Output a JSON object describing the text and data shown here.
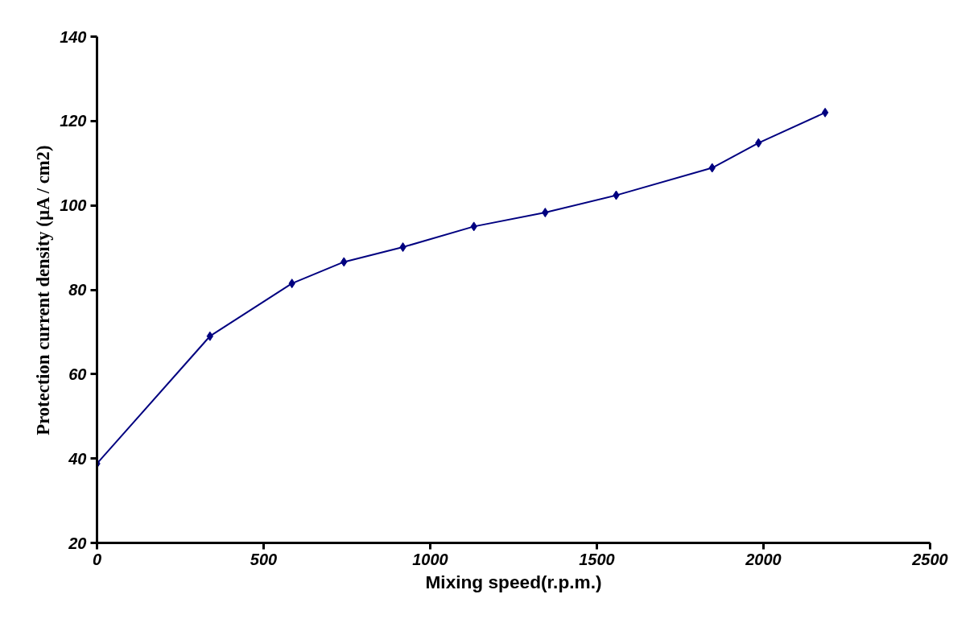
{
  "chart_data": {
    "type": "line",
    "xlabel": "Mixing speed(r.p.m.)",
    "ylabel": "Protection current density (µA / cm2)",
    "x": [
      0,
      339,
      585,
      741,
      918,
      1131,
      1345,
      1558,
      1846,
      1985,
      2185
    ],
    "series": [
      {
        "color": "#000080",
        "values": [
          38.8,
          69.0,
          81.5,
          86.6,
          90.1,
          95.0,
          98.3,
          102.4,
          108.9,
          114.8,
          122.0
        ]
      }
    ],
    "xlim": [
      0,
      2500
    ],
    "xticks": [
      0,
      500,
      1000,
      1500,
      2000,
      2500
    ],
    "ylim": [
      20,
      140
    ],
    "yticks": [
      20,
      40,
      60,
      80,
      100,
      120,
      140
    ],
    "marker": "diamond",
    "line_style": "solid"
  }
}
